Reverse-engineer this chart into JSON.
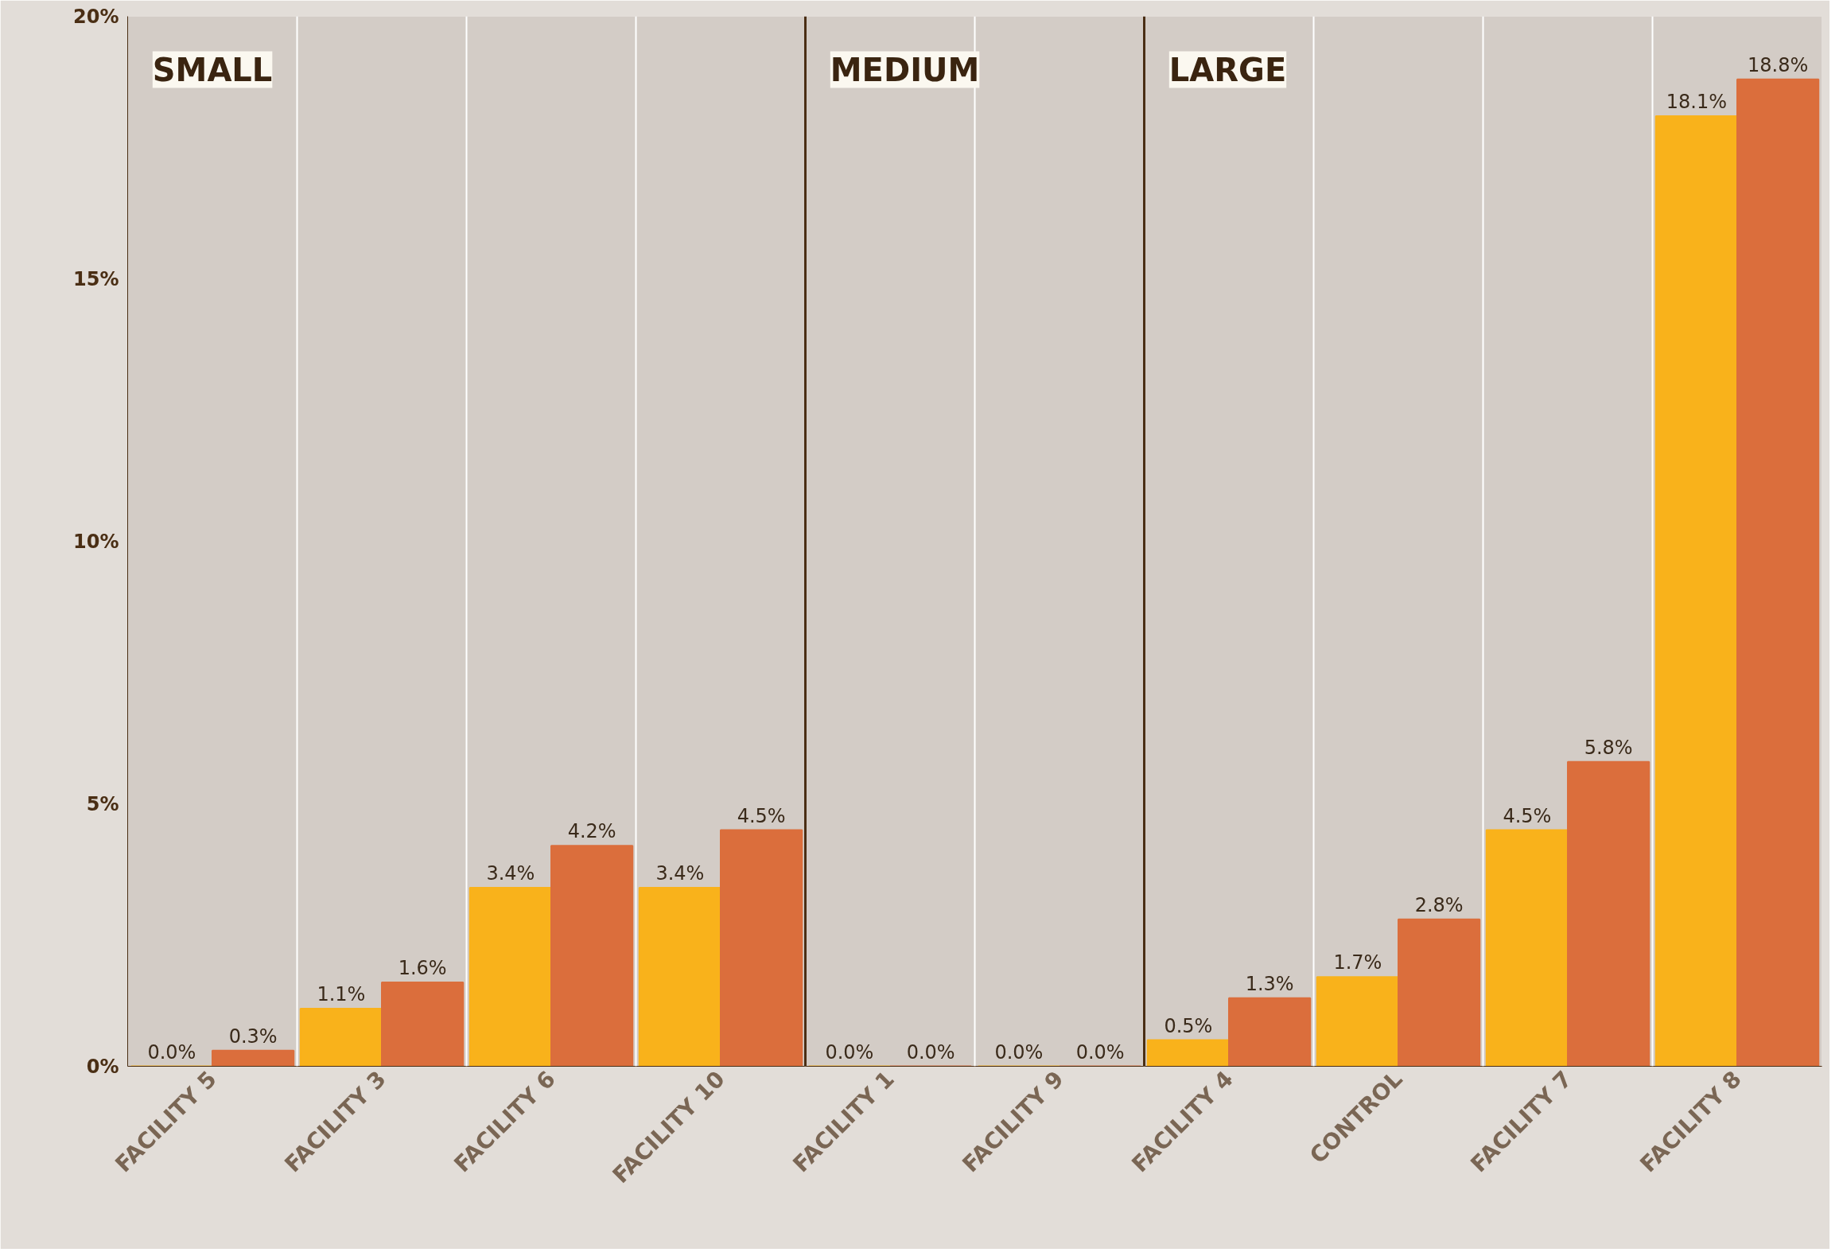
{
  "chart_data": {
    "type": "bar",
    "categories": [
      "FACILITY 5",
      "FACILITY 3",
      "FACILITY 6",
      "FACILITY 10",
      "FACILITY 1",
      "FACILITY 9",
      "FACILITY 4",
      "CONTROL",
      "FACILITY 7",
      "FACILITY 8"
    ],
    "series": [
      {
        "color": "#f9b21b",
        "values": [
          0.0,
          1.1,
          3.4,
          3.4,
          0.0,
          0.0,
          0.5,
          1.7,
          4.5,
          18.1
        ],
        "value_labels": [
          "0.0%",
          "1.1%",
          "3.4%",
          "3.4%",
          "0.0%",
          "0.0%",
          "0.5%",
          "1.7%",
          "4.5%",
          "18.1%"
        ]
      },
      {
        "color": "#db6e3c",
        "values": [
          0.3,
          1.6,
          4.2,
          4.5,
          0.0,
          0.0,
          1.3,
          2.8,
          5.8,
          18.8
        ],
        "value_labels": [
          "0.3%",
          "1.6%",
          "4.2%",
          "4.5%",
          "0.0%",
          "0.0%",
          "1.3%",
          "2.8%",
          "5.8%",
          "18.8%"
        ]
      }
    ],
    "ylim": [
      0,
      20
    ],
    "yticks": [
      {
        "value": 0,
        "label": "0%"
      },
      {
        "value": 5,
        "label": "5%"
      },
      {
        "value": 10,
        "label": "10%"
      },
      {
        "value": 15,
        "label": "15%"
      },
      {
        "value": 20,
        "label": "20%"
      }
    ],
    "annotations": [
      "SMALL",
      "MEDIUM",
      "LARGE"
    ]
  }
}
